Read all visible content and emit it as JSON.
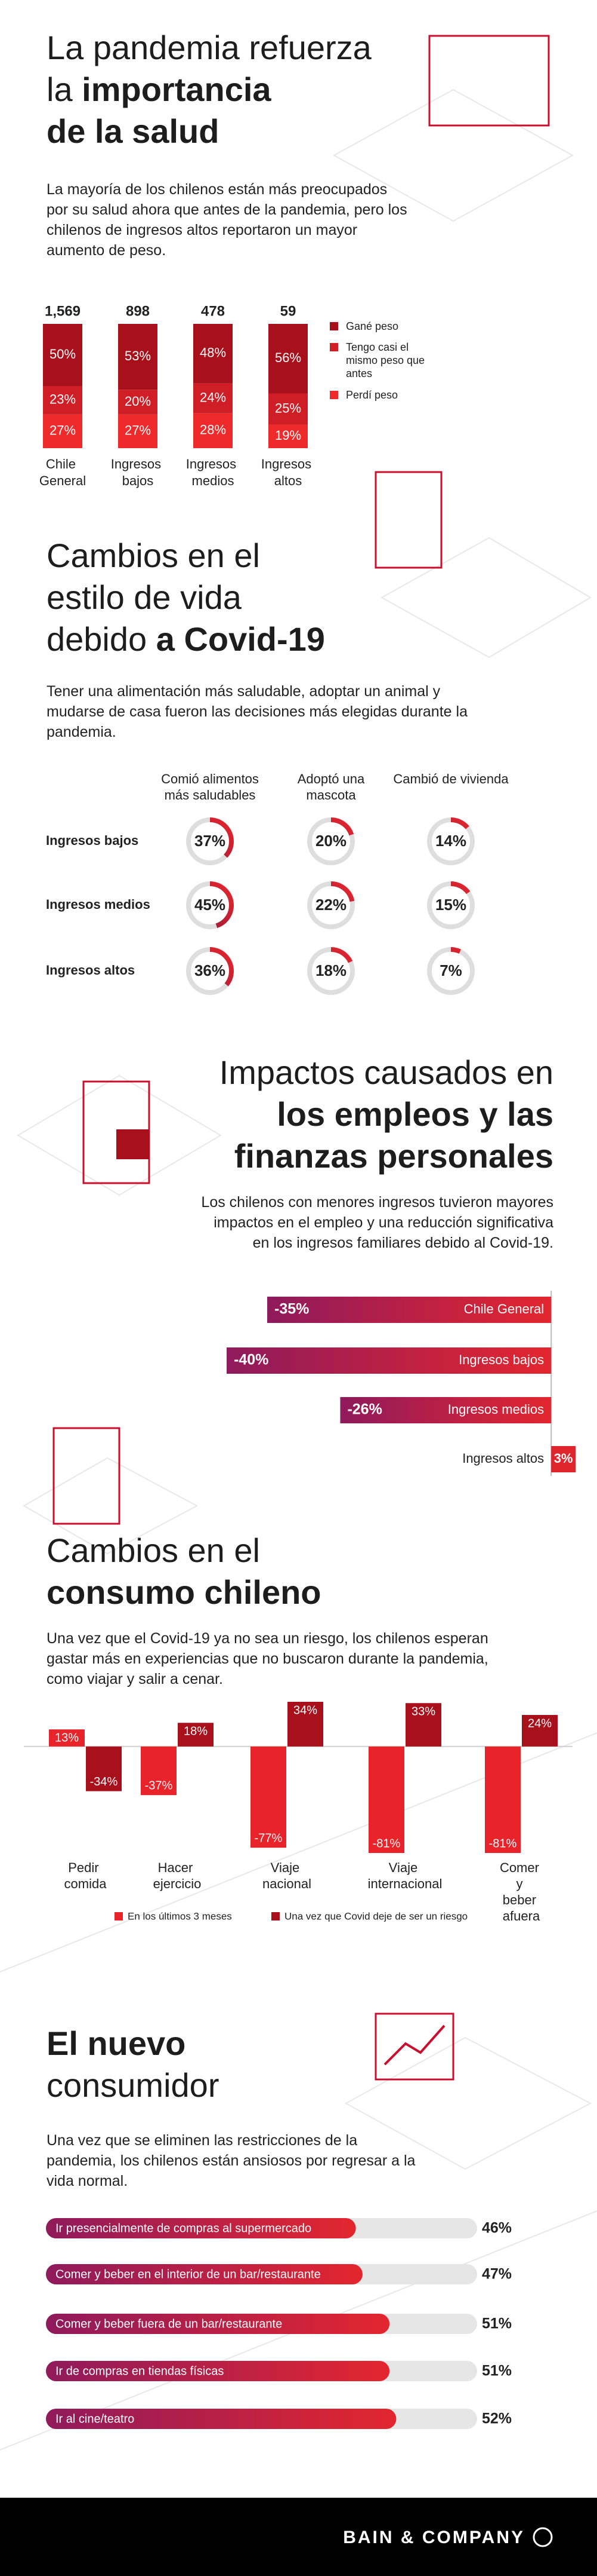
{
  "sections": [
    {
      "title": [
        [
          {
            "text": "La pandemia refuerza"
          }
        ],
        [
          {
            "text": "la"
          },
          {
            "text": "importancia",
            "bold": true
          }
        ],
        [
          {
            "text": "de la salud",
            "bold": true
          }
        ]
      ],
      "body": "La mayoría de los chilenos están más preocupados por su salud ahora que antes de la pandemia, pero los chilenos de ingresos altos reportaron un mayor aumento de peso."
    },
    {
      "title": [
        [
          {
            "text": "Cambios en el"
          }
        ],
        [
          {
            "text": "estilo de vida"
          }
        ],
        [
          {
            "text": "debido"
          },
          {
            "text": "a Covid-19",
            "bold": true
          }
        ]
      ],
      "body": "Tener una alimentación más saludable, adoptar un animal y mudarse de casa fueron las decisiones más elegidas durante la pandemia."
    },
    {
      "title": [
        [
          {
            "text": "Impactos causados en"
          }
        ],
        [
          {
            "text": "los empleos y las",
            "bold": true
          }
        ],
        [
          {
            "text": "finanzas personales",
            "bold": true
          }
        ]
      ],
      "body": "Los chilenos con menores ingresos tuvieron mayores impactos en el empleo y una reducción significativa en los ingresos familiares debido al Covid-19."
    },
    {
      "title": [
        [
          {
            "text": "Cambios en el"
          }
        ],
        [
          {
            "text": "consumo chileno",
            "bold": true
          }
        ]
      ],
      "body": "Una vez que el Covid-19 ya no sea un riesgo, los chilenos esperan gastar más en experiencias que no buscaron durante la pandemia, como viajar y salir a cenar."
    },
    {
      "title": [
        [
          {
            "text": "El nuevo",
            "bold": true
          }
        ],
        [
          {
            "text": "consumidor"
          }
        ]
      ],
      "body": "Una vez que se eliminen las restricciones de la pandemia, los chilenos están ansiosos por regresar a la vida normal."
    }
  ],
  "chart_data": [
    {
      "type": "stacked_bar",
      "categories": [
        "Chile General",
        "Ingresos bajos",
        "Ingresos medios",
        "Ingresos altos"
      ],
      "header_labels": [
        "1,569",
        "898",
        "478",
        "59"
      ],
      "ylim": [
        0,
        100
      ],
      "series": [
        {
          "name": "Gané peso",
          "color": "#a8111b",
          "values": [
            50,
            53,
            48,
            56
          ],
          "value_labels": [
            "50%",
            "53%",
            "48%",
            "56%"
          ]
        },
        {
          "name": "Tengo casi el mismo peso que antes",
          "color": "#cf1e26",
          "values": [
            23,
            20,
            24,
            25
          ],
          "value_labels": [
            "23%",
            "20%",
            "24%",
            "25%"
          ]
        },
        {
          "name": "Perdí peso",
          "color": "#ee2a2a",
          "values": [
            27,
            27,
            28,
            19
          ],
          "value_labels": [
            "27%",
            "27%",
            "28%",
            "19%"
          ]
        }
      ]
    },
    {
      "type": "donut",
      "columns": [
        "Comió alimentos más saludables",
        "Adoptó una mascota",
        "Cambió de vivienda"
      ],
      "rows": [
        "Ingresos bajos",
        "Ingresos medios",
        "Ingresos altos"
      ],
      "values": [
        [
          37,
          20,
          14
        ],
        [
          45,
          22,
          15
        ],
        [
          36,
          18,
          7
        ]
      ],
      "value_labels": [
        [
          "37%",
          "20%",
          "14%"
        ],
        [
          "45%",
          "22%",
          "15%"
        ],
        [
          "36%",
          "18%",
          "7%"
        ]
      ],
      "color": "#c8102e",
      "track_color": "#dedede"
    },
    {
      "type": "diverging_bar",
      "categories": [
        "Chile General",
        "Ingresos bajos",
        "Ingresos medios",
        "Ingresos altos"
      ],
      "values": [
        -35,
        -40,
        -26,
        3
      ],
      "value_labels": [
        "-35%",
        "-40%",
        "-26%",
        "3%"
      ],
      "xlim": [
        -40,
        3
      ],
      "color": "#e0242e"
    },
    {
      "type": "grouped_bar",
      "categories": [
        "Pedir comida",
        "Hacer ejercicio",
        "Viaje nacional",
        "Viaje internacional",
        "Comer y beber afuera"
      ],
      "ylim": [
        -81,
        34
      ],
      "series": [
        {
          "name": "En los últimos 3 meses",
          "color": "#e8242a",
          "values": [
            13,
            -37,
            -77,
            -81,
            -81
          ],
          "value_labels": [
            "13%",
            "-37%",
            "-77%",
            "-81%",
            "-81%"
          ]
        },
        {
          "name": "Una vez que Covid deje de ser un riesgo",
          "color": "#a8111b",
          "values": [
            -34,
            18,
            34,
            33,
            24
          ],
          "value_labels": [
            "-34%",
            "18%",
            "34%",
            "33%",
            "24%"
          ]
        }
      ]
    },
    {
      "type": "progress_bar",
      "categories": [
        "Ir presencialmente de compras al supermercado",
        "Comer y beber en el interior de un bar/restaurante",
        "Comer y beber fuera de un bar/restaurante",
        "Ir de compras en tiendas físicas",
        "Ir al cine/teatro"
      ],
      "values": [
        46,
        47,
        51,
        51,
        52
      ],
      "value_labels": [
        "46%",
        "47%",
        "51%",
        "51%",
        "52%"
      ],
      "xlim": [
        0,
        64
      ],
      "track_color": "#e6e6e6"
    }
  ],
  "footer": "BAIN & COMPANY"
}
